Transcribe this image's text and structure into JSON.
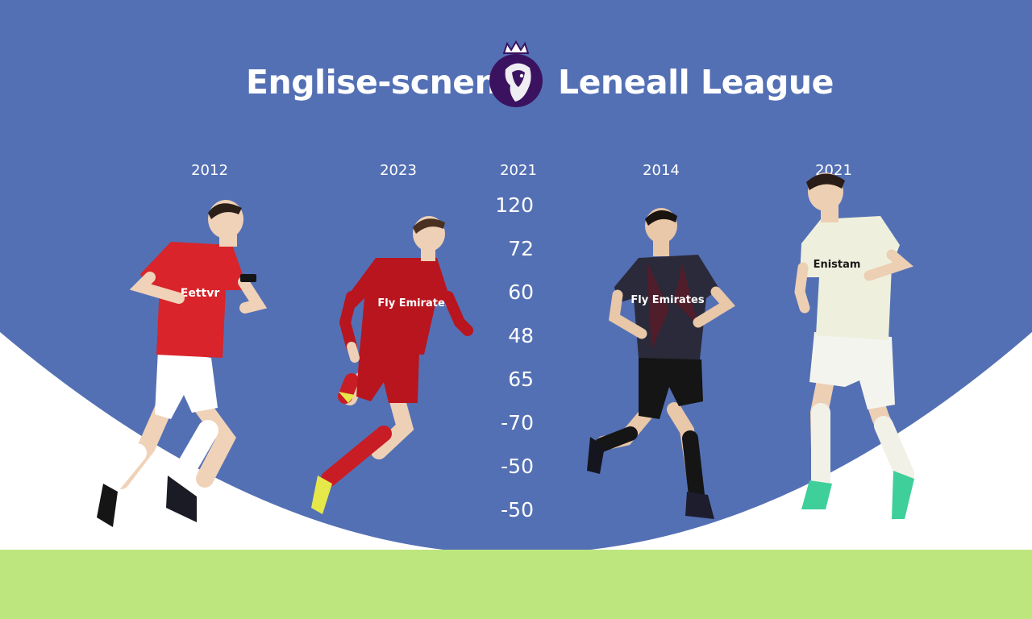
{
  "header": {
    "title_left": "Englise-scnen",
    "title_right": "Leneall League"
  },
  "columns": [
    {
      "year": "2012",
      "kit": {
        "primary": "#d8242a",
        "shorts": "#ffffff",
        "socks": "#ffffff",
        "sponsor": "Eettvr"
      }
    },
    {
      "year": "2023",
      "kit": {
        "primary": "#b8151f",
        "shorts": "#b8151f",
        "socks": "#c81d25",
        "sponsor": "Fly Emirates"
      }
    },
    {
      "year": "2021"
    },
    {
      "year": "2014",
      "kit": {
        "primary": "#2a2a3a",
        "shorts": "#151515",
        "socks": "#151515",
        "sponsor": "Fly Emirates"
      }
    },
    {
      "year": "2021",
      "kit": {
        "primary": "#eef0dd",
        "shorts": "#f4f4ee",
        "socks": "#f1f1e8",
        "sponsor": "Enistam"
      }
    }
  ],
  "stats": [
    "120",
    "72",
    "60",
    "48",
    "65",
    "-70",
    "-50",
    "-50"
  ],
  "colors": {
    "background_blue": "#5470b4",
    "lower_white": "#ffffff",
    "grass_green": "#bde67f",
    "logo_purple": "#3b1260"
  },
  "logo": {
    "icon": "lion-crown-icon"
  }
}
